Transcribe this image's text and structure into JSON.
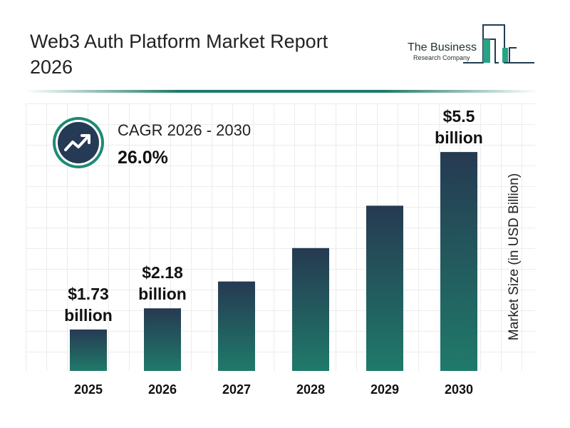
{
  "header": {
    "title": "Web3 Auth Platform Market Report 2026"
  },
  "logo": {
    "line1": "The Business",
    "line2": "Research Company"
  },
  "cagr": {
    "label": "CAGR 2026 - 2030",
    "value": "26.0%",
    "icon": "trend-up-arrow-icon"
  },
  "colors": {
    "bar_top": "#263a52",
    "bar_bottom": "#1f7a6a",
    "accent": "#1f7a6a"
  },
  "chart_data": {
    "type": "bar",
    "categories": [
      "2025",
      "2026",
      "2027",
      "2028",
      "2029",
      "2030"
    ],
    "values": [
      1.73,
      2.18,
      2.75,
      3.46,
      4.36,
      5.5
    ],
    "data_labels": [
      [
        "$1.73",
        "billion"
      ],
      [
        "$2.18",
        "billion"
      ],
      null,
      null,
      null,
      [
        "$5.5",
        "billion"
      ]
    ],
    "title": "",
    "xlabel": "",
    "ylabel": "Market Size (in USD Billion)",
    "grid": true
  }
}
